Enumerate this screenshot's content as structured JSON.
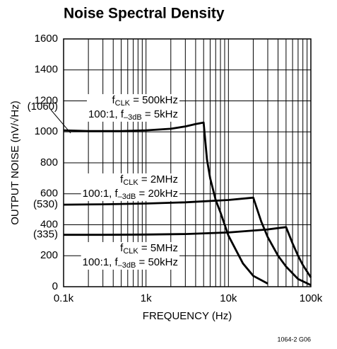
{
  "chart_data": {
    "type": "line",
    "title": "Noise Spectral Density",
    "xlabel": "FREQUENCY (Hz)",
    "ylabel": "OUTPUT NOISE (nV/√Hz)",
    "footnote": "1064-2 G06",
    "xscale": "log",
    "grid": true,
    "xlim": [
      100,
      100000
    ],
    "ylim": [
      0,
      1600
    ],
    "xticks": [
      {
        "value": 100,
        "label": "0.1k"
      },
      {
        "value": 1000,
        "label": "1k"
      },
      {
        "value": 10000,
        "label": "10k"
      },
      {
        "value": 100000,
        "label": "100k"
      }
    ],
    "yticks": [
      0,
      200,
      400,
      600,
      800,
      1000,
      1200,
      1400,
      1600
    ],
    "y_markers": [
      {
        "value": 1060,
        "label": "(1060)"
      },
      {
        "value": 530,
        "label": "(530)"
      },
      {
        "value": 335,
        "label": "(335)"
      }
    ],
    "series": [
      {
        "name": "500kHz",
        "color": "#000000",
        "x": [
          100,
          200,
          500,
          1000,
          2000,
          3000,
          4000,
          5000,
          5500,
          6000,
          7000,
          8000,
          10000,
          15000,
          20000,
          30000
        ],
        "values": [
          1010,
          1005,
          1005,
          1010,
          1020,
          1035,
          1050,
          1060,
          820,
          700,
          560,
          480,
          330,
          150,
          70,
          20
        ]
      },
      {
        "name": "2MHz",
        "color": "#000000",
        "x": [
          100,
          300,
          1000,
          3000,
          10000,
          20000,
          25000,
          30000,
          40000,
          50000,
          70000,
          100000
        ],
        "values": [
          530,
          532,
          537,
          545,
          560,
          575,
          420,
          320,
          200,
          130,
          50,
          10
        ]
      },
      {
        "name": "5MHz",
        "color": "#000000",
        "x": [
          100,
          300,
          1000,
          3000,
          10000,
          30000,
          50000,
          60000,
          70000,
          80000,
          100000
        ],
        "values": [
          335,
          335,
          337,
          340,
          350,
          370,
          385,
          280,
          200,
          140,
          60
        ]
      }
    ],
    "annotations": [
      {
        "lines": [
          [
            {
              "text": "f"
            },
            {
              "text": "CLK",
              "sub": true
            },
            {
              "text": " = 500kHz"
            }
          ],
          [
            {
              "text": "100:1, f"
            },
            {
              "text": "–3dB",
              "sub": true
            },
            {
              "text": " = 5kHz"
            }
          ]
        ]
      },
      {
        "lines": [
          [
            {
              "text": "f"
            },
            {
              "text": "CLK",
              "sub": true
            },
            {
              "text": " = 2MHz"
            }
          ],
          [
            {
              "text": "100:1, f"
            },
            {
              "text": "–3dB",
              "sub": true
            },
            {
              "text": " = 20kHz"
            }
          ]
        ]
      },
      {
        "lines": [
          [
            {
              "text": "f"
            },
            {
              "text": "CLK",
              "sub": true
            },
            {
              "text": " = 5MHz"
            }
          ],
          [
            {
              "text": "100:1, f"
            },
            {
              "text": "–3dB",
              "sub": true
            },
            {
              "text": " = 50kHz"
            }
          ]
        ]
      }
    ]
  }
}
